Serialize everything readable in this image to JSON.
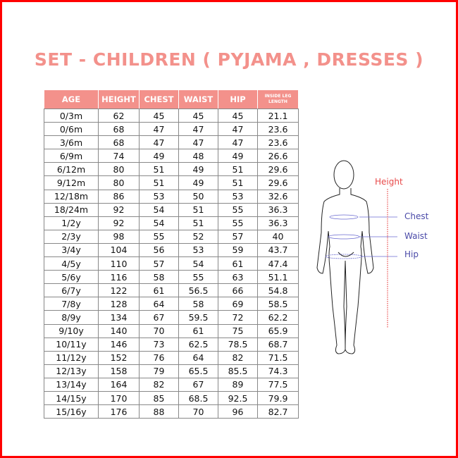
{
  "title": "SET - CHILDREN ( PYJAMA , DRESSES )",
  "table": {
    "headers": [
      "AGE",
      "HEIGHT",
      "CHEST",
      "WAIST",
      "HIP",
      "INSIDE LEG LENGTH"
    ],
    "rows": [
      [
        "0/3m",
        "62",
        "45",
        "45",
        "45",
        "21.1"
      ],
      [
        "0/6m",
        "68",
        "47",
        "47",
        "47",
        "23.6"
      ],
      [
        "3/6m",
        "68",
        "47",
        "47",
        "47",
        "23.6"
      ],
      [
        "6/9m",
        "74",
        "49",
        "48",
        "49",
        "26.6"
      ],
      [
        "6/12m",
        "80",
        "51",
        "49",
        "51",
        "29.6"
      ],
      [
        "9/12m",
        "80",
        "51",
        "49",
        "51",
        "29.6"
      ],
      [
        "12/18m",
        "86",
        "53",
        "50",
        "53",
        "32.6"
      ],
      [
        "18/24m",
        "92",
        "54",
        "51",
        "55",
        "36.3"
      ],
      [
        "1/2y",
        "92",
        "54",
        "51",
        "55",
        "36.3"
      ],
      [
        "2/3y",
        "98",
        "55",
        "52",
        "57",
        "40"
      ],
      [
        "3/4y",
        "104",
        "56",
        "53",
        "59",
        "43.7"
      ],
      [
        "4/5y",
        "110",
        "57",
        "54",
        "61",
        "47.4"
      ],
      [
        "5/6y",
        "116",
        "58",
        "55",
        "63",
        "51.1"
      ],
      [
        "6/7y",
        "122",
        "61",
        "56.5",
        "66",
        "54.8"
      ],
      [
        "7/8y",
        "128",
        "64",
        "58",
        "69",
        "58.5"
      ],
      [
        "8/9y",
        "134",
        "67",
        "59.5",
        "72",
        "62.2"
      ],
      [
        "9/10y",
        "140",
        "70",
        "61",
        "75",
        "65.9"
      ],
      [
        "10/11y",
        "146",
        "73",
        "62.5",
        "78.5",
        "68.7"
      ],
      [
        "11/12y",
        "152",
        "76",
        "64",
        "82",
        "71.5"
      ],
      [
        "12/13y",
        "158",
        "79",
        "65.5",
        "85.5",
        "74.3"
      ],
      [
        "13/14y",
        "164",
        "82",
        "67",
        "89",
        "77.5"
      ],
      [
        "14/15y",
        "170",
        "85",
        "68.5",
        "92.5",
        "79.9"
      ],
      [
        "15/16y",
        "176",
        "88",
        "70",
        "96",
        "82.7"
      ]
    ]
  },
  "figure": {
    "height_label": "Height",
    "chest_label": "Chest",
    "waist_label": "Waist",
    "hip_label": "Hip"
  },
  "colors": {
    "accent": "#f3918b",
    "frame": "#ff0000",
    "height_line": "#e84a4a",
    "measure": "#4a4aa8"
  }
}
